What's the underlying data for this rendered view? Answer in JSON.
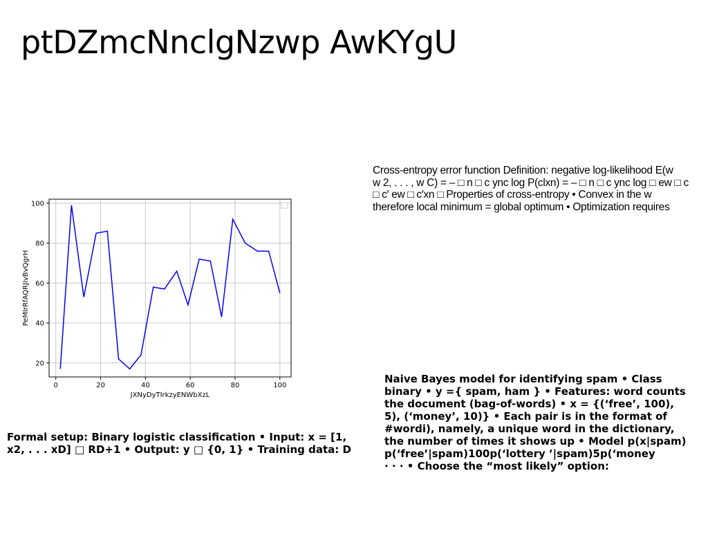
{
  "slide": {
    "title": "ptDZmcNnclgNzwp AwKYgU"
  },
  "cross_entropy": {
    "lines": [
      "Cross-entropy error function Definition: negative log-likelihood E(w",
      "w 2, . . . , w C) = – □ n □ c ync log P(clxn) = – □ n □ c ync log □ ew □ c",
      "□ c′ ew □ c′xn □ Properties of cross-entropy • Convex in the w",
      "therefore local minimum = global optimum • Optimization requires"
    ]
  },
  "naive_bayes": {
    "lines": [
      "Naive Bayes model for identifying spam • Class",
      "binary • y ={ spam, ham } • Features: word counts",
      "the document (bag-of-words) • x = {(‘free’, 100),",
      "5), (‘money’, 10)} • Each pair is in the format of",
      "#wordi), namely, a unique word in the dictionary,",
      "the number of times it shows up • Model p(x|spam)",
      "p(‘free’|spam)100p(‘lottery ’|spam)5p(‘money",
      "· · · • Choose the “most likely” option:"
    ]
  },
  "formal_setup": {
    "lines": [
      "Formal setup: Binary logistic classification • Input: x = [1,",
      "x2, . . . xD] □ RD+1 • Output: y □ {0, 1} • Training data: D"
    ]
  },
  "chart_data": {
    "type": "line",
    "title": "",
    "xlabel": "JXNyDyTIrkzyENWbXzL",
    "ylabel": "PeMIrRfAQRJivBvQgrH",
    "xlim": [
      -3,
      105
    ],
    "ylim": [
      13,
      102
    ],
    "xticks": [
      0,
      20,
      40,
      60,
      80,
      100
    ],
    "yticks": [
      20,
      40,
      60,
      80,
      100
    ],
    "grid": true,
    "legend": "top-right (empty)",
    "series": [
      {
        "color": "#0000ee",
        "x": [
          2,
          7,
          12.5,
          18,
          23,
          28,
          33,
          38,
          43.5,
          48.5,
          54,
          59,
          64,
          69,
          74,
          79,
          84.5,
          90,
          95,
          100
        ],
        "y": [
          17,
          99,
          53,
          85,
          86,
          22,
          17,
          24,
          58,
          57,
          66,
          49,
          72,
          71,
          43,
          92,
          80,
          76,
          76,
          55
        ]
      }
    ]
  }
}
